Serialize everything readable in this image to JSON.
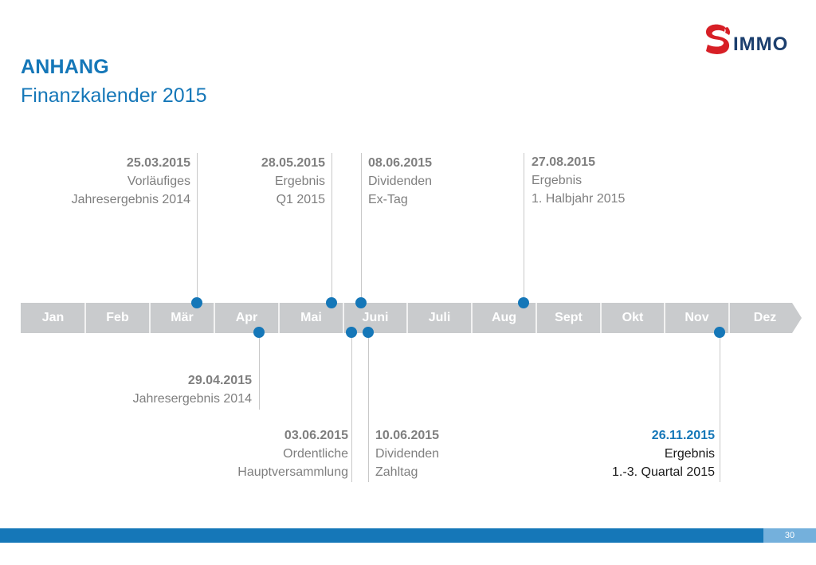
{
  "header": {
    "title": "ANHANG",
    "subtitle": "Finanzkalender 2015"
  },
  "logo": {
    "text": "IMMO",
    "mark_color": "#d71f26",
    "text_color": "#1c3f6e"
  },
  "colors": {
    "accent": "#1577b8",
    "timeline": "#c9cbcd",
    "event_text": "#7f7f7f"
  },
  "timeline": {
    "months": [
      "Jan",
      "Feb",
      "Mär",
      "Apr",
      "Mai",
      "Juni",
      "Juli",
      "Aug",
      "Sept",
      "Okt",
      "Nov",
      "Dez"
    ]
  },
  "events": [
    {
      "date": "25.03.2015",
      "lines": [
        "Vorläufiges",
        "Jahresergebnis 2014"
      ]
    },
    {
      "date": "28.05.2015",
      "lines": [
        "Ergebnis",
        "Q1 2015"
      ]
    },
    {
      "date": "08.06.2015",
      "lines": [
        "Dividenden",
        "Ex-Tag"
      ]
    },
    {
      "date": "27.08.2015",
      "lines": [
        "Ergebnis",
        "1. Halbjahr 2015"
      ]
    },
    {
      "date": "29.04.2015",
      "lines": [
        "Jahresergebnis 2014"
      ]
    },
    {
      "date": "03.06.2015",
      "lines": [
        "Ordentliche",
        "Hauptversammlung"
      ]
    },
    {
      "date": "10.06.2015",
      "lines": [
        "Dividenden",
        "Zahltag"
      ]
    },
    {
      "date": "26.11.2015",
      "lines": [
        "Ergebnis",
        "1.-3. Quartal 2015"
      ]
    }
  ],
  "footer": {
    "page_number": "30"
  }
}
